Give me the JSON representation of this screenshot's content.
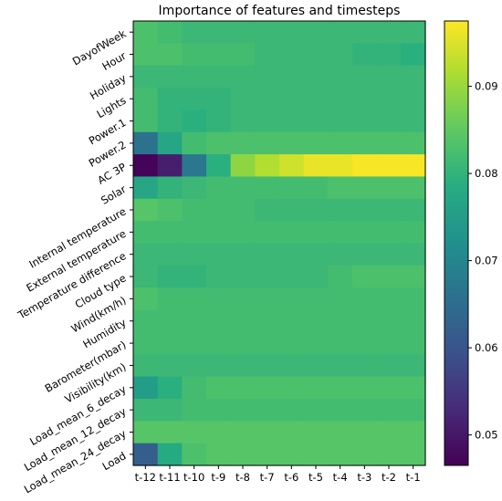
{
  "chart_data": {
    "type": "heatmap",
    "title": "Importance of features and timesteps",
    "x": [
      "t-12",
      "t-11",
      "t-10",
      "t-9",
      "t-8",
      "t-7",
      "t-6",
      "t-5",
      "t-4",
      "t-3",
      "t-2",
      "t-1"
    ],
    "y": [
      "DayofWeek",
      "Hour",
      "Holiday",
      "Lights",
      "Power.1",
      "Power.2",
      "AC 3P",
      "Solar",
      "Internal temperature",
      "External temperature",
      "Temperature difference",
      "Cloud type",
      "Wind(km/h)",
      "Humidity",
      "Barometer(mbar)",
      "Visibility(km)",
      "Load_mean_6_decay",
      "Load_mean_12_decay",
      "Load_mean_24_decay",
      "Load"
    ],
    "values": [
      [
        0.083,
        0.082,
        0.081,
        0.081,
        0.081,
        0.081,
        0.081,
        0.081,
        0.081,
        0.081,
        0.081,
        0.081
      ],
      [
        0.083,
        0.083,
        0.082,
        0.082,
        0.082,
        0.081,
        0.081,
        0.081,
        0.081,
        0.08,
        0.08,
        0.079
      ],
      [
        0.081,
        0.081,
        0.081,
        0.081,
        0.081,
        0.081,
        0.081,
        0.081,
        0.081,
        0.081,
        0.081,
        0.081
      ],
      [
        0.082,
        0.08,
        0.08,
        0.08,
        0.081,
        0.081,
        0.081,
        0.081,
        0.081,
        0.081,
        0.081,
        0.081
      ],
      [
        0.082,
        0.08,
        0.079,
        0.08,
        0.081,
        0.081,
        0.081,
        0.081,
        0.081,
        0.081,
        0.081,
        0.081
      ],
      [
        0.066,
        0.077,
        0.082,
        0.083,
        0.083,
        0.083,
        0.083,
        0.083,
        0.083,
        0.083,
        0.083,
        0.083
      ],
      [
        0.047,
        0.051,
        0.067,
        0.079,
        0.089,
        0.092,
        0.094,
        0.096,
        0.096,
        0.097,
        0.097,
        0.097
      ],
      [
        0.077,
        0.08,
        0.081,
        0.082,
        0.082,
        0.082,
        0.082,
        0.082,
        0.083,
        0.083,
        0.083,
        0.083
      ],
      [
        0.084,
        0.083,
        0.082,
        0.082,
        0.082,
        0.081,
        0.081,
        0.081,
        0.081,
        0.081,
        0.081,
        0.081
      ],
      [
        0.082,
        0.082,
        0.082,
        0.082,
        0.082,
        0.082,
        0.082,
        0.082,
        0.082,
        0.082,
        0.082,
        0.082
      ],
      [
        0.081,
        0.081,
        0.081,
        0.081,
        0.081,
        0.081,
        0.081,
        0.081,
        0.081,
        0.081,
        0.081,
        0.081
      ],
      [
        0.081,
        0.08,
        0.08,
        0.081,
        0.081,
        0.081,
        0.081,
        0.081,
        0.082,
        0.083,
        0.083,
        0.083
      ],
      [
        0.083,
        0.082,
        0.082,
        0.082,
        0.082,
        0.082,
        0.082,
        0.082,
        0.082,
        0.082,
        0.082,
        0.082
      ],
      [
        0.082,
        0.082,
        0.082,
        0.082,
        0.082,
        0.082,
        0.082,
        0.082,
        0.082,
        0.082,
        0.082,
        0.082
      ],
      [
        0.082,
        0.082,
        0.082,
        0.082,
        0.082,
        0.082,
        0.082,
        0.082,
        0.082,
        0.082,
        0.082,
        0.082
      ],
      [
        0.081,
        0.081,
        0.081,
        0.081,
        0.081,
        0.081,
        0.081,
        0.081,
        0.081,
        0.081,
        0.081,
        0.081
      ],
      [
        0.075,
        0.079,
        0.082,
        0.083,
        0.083,
        0.083,
        0.083,
        0.083,
        0.083,
        0.083,
        0.083,
        0.083
      ],
      [
        0.081,
        0.081,
        0.082,
        0.082,
        0.082,
        0.082,
        0.082,
        0.082,
        0.082,
        0.082,
        0.082,
        0.082
      ],
      [
        0.084,
        0.084,
        0.084,
        0.084,
        0.084,
        0.084,
        0.084,
        0.084,
        0.084,
        0.084,
        0.084,
        0.084
      ],
      [
        0.062,
        0.078,
        0.083,
        0.084,
        0.084,
        0.084,
        0.084,
        0.084,
        0.084,
        0.084,
        0.084,
        0.084
      ]
    ],
    "colorbar": {
      "colormap": "viridis",
      "range": [
        0.0465,
        0.0975
      ],
      "ticks": [
        0.05,
        0.06,
        0.07,
        0.08,
        0.09
      ],
      "tick_labels": [
        "0.05",
        "0.06",
        "0.07",
        "0.08",
        "0.09"
      ]
    }
  }
}
